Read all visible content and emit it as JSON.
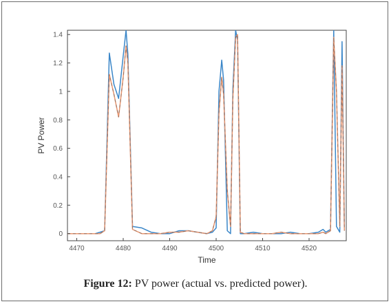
{
  "caption": {
    "label": "Figure 12:",
    "text": " PV power (actual vs. predicted power)."
  },
  "chart_data": {
    "type": "line",
    "title": "",
    "xlabel": "Time",
    "ylabel": "PV Power",
    "xlim": [
      4468,
      4528
    ],
    "ylim": [
      -0.05,
      1.43
    ],
    "xticks": [
      4470,
      4480,
      4490,
      4500,
      4510,
      4520
    ],
    "yticks": [
      0,
      0.2,
      0.4,
      0.6,
      0.8,
      1,
      1.2,
      1.4
    ],
    "ytick_labels": [
      "0",
      "0.2",
      "0.4",
      "0.6",
      "0.8",
      "1",
      "1.2",
      "1.4"
    ],
    "grid": false,
    "legend": "none",
    "series": [
      {
        "color": "#3a86c8",
        "style": "solid",
        "x": [
          4468,
          4470,
          4472,
          4474,
          4475,
          4476,
          4477,
          4478,
          4479,
          4480,
          4480.6,
          4481,
          4482,
          4484,
          4486,
          4488,
          4490,
          4492,
          4494,
          4496,
          4498,
          4499.2,
          4500,
          4500.6,
          4501.2,
          4501.6,
          4502.4,
          4503.1,
          4503.6,
          4504.2,
          4504.6,
          4505.2,
          4506,
          4508,
          4510,
          4512,
          4514,
          4516,
          4518,
          4520,
          4522,
          4523,
          4523.6,
          4524.6,
          4525.3,
          4525.9,
          4526.6,
          4527.1,
          4527.6
        ],
        "y": [
          0,
          0,
          0,
          0,
          0.01,
          0.02,
          1.27,
          1.05,
          0.95,
          1.25,
          1.43,
          1.26,
          0.05,
          0.04,
          0.01,
          0,
          0,
          0.02,
          0.02,
          0.01,
          0,
          0.01,
          0.04,
          1.0,
          1.22,
          1.08,
          0.02,
          0.0,
          1.02,
          1.43,
          1.36,
          0.0,
          0,
          0.01,
          0,
          0,
          0,
          0.01,
          0,
          0,
          0.01,
          0.03,
          0.01,
          0.03,
          1.43,
          0.05,
          0.01,
          1.35,
          0.03
        ]
      },
      {
        "color": "#e8956f",
        "style": "solid",
        "x": [
          4468,
          4470,
          4472,
          4474,
          4475,
          4476,
          4477,
          4478,
          4479,
          4480,
          4480.6,
          4481,
          4482,
          4484,
          4486,
          4488,
          4490,
          4492,
          4494,
          4496,
          4498,
          4499.2,
          4500,
          4500.6,
          4501.2,
          4501.6,
          4502.4,
          4503.1,
          4503.6,
          4504.2,
          4504.6,
          4505.2,
          4506,
          4508,
          4510,
          4512,
          4514,
          4516,
          4518,
          4520,
          4522,
          4523,
          4523.6,
          4524.6,
          4525.3,
          4525.9,
          4526.6,
          4527.1,
          4527.6
        ],
        "y": [
          0,
          0,
          0,
          0,
          0.0,
          0.02,
          1.12,
          0.98,
          0.82,
          1.1,
          1.32,
          1.2,
          0.03,
          0.0,
          0.0,
          0,
          0.01,
          0.01,
          0.02,
          0.01,
          0,
          0.02,
          0.12,
          0.85,
          1.1,
          0.98,
          0.3,
          0.05,
          0.95,
          1.38,
          1.4,
          0.01,
          0,
          0,
          0,
          0,
          0.01,
          0,
          0,
          0,
          0,
          0.01,
          0.0,
          0.02,
          1.38,
          1.0,
          0.05,
          1.18,
          0.02
        ]
      }
    ]
  }
}
